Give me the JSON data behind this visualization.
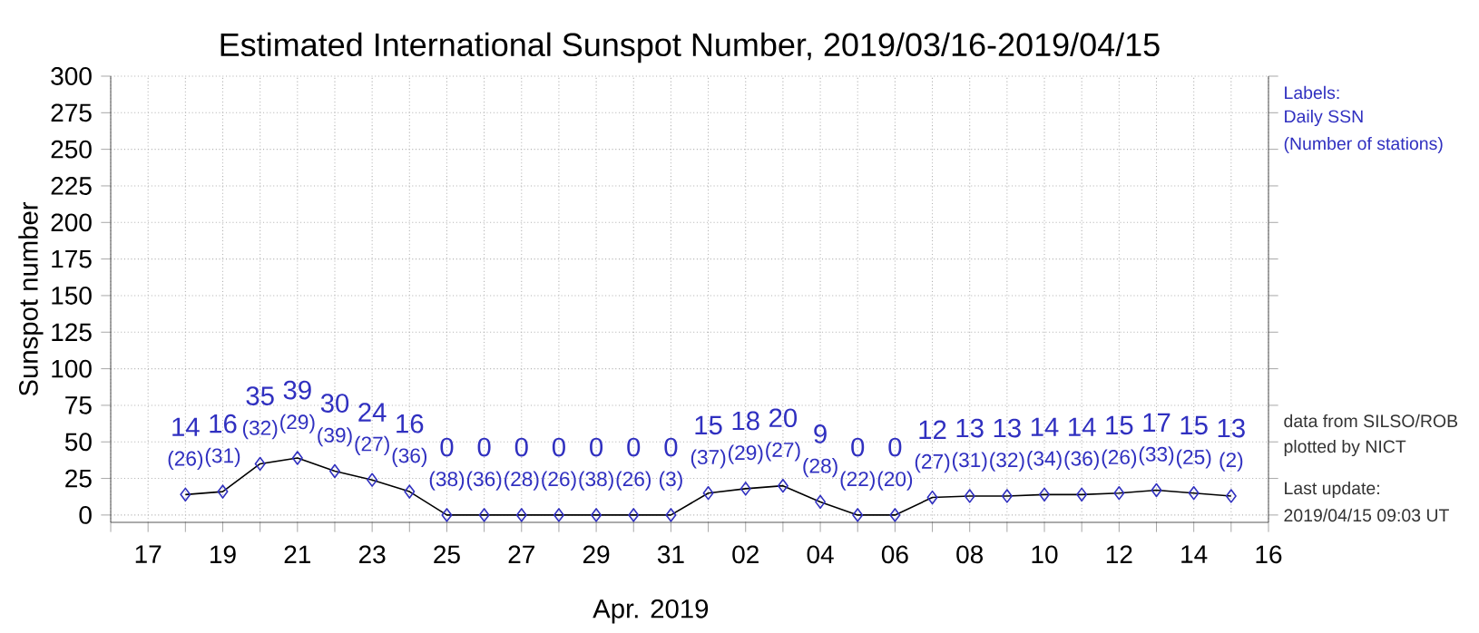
{
  "chart_data": {
    "type": "line",
    "title": "Estimated International Sunspot Number, 2019/03/16-2019/04/15",
    "ylabel": "Sunspot number",
    "xlabel": "Apr. 2019",
    "x": [
      "2019-03-18",
      "2019-03-19",
      "2019-03-20",
      "2019-03-21",
      "2019-03-22",
      "2019-03-23",
      "2019-03-24",
      "2019-03-25",
      "2019-03-26",
      "2019-03-27",
      "2019-03-28",
      "2019-03-29",
      "2019-03-30",
      "2019-03-31",
      "2019-04-01",
      "2019-04-02",
      "2019-04-03",
      "2019-04-04",
      "2019-04-05",
      "2019-04-06",
      "2019-04-07",
      "2019-04-08",
      "2019-04-09",
      "2019-04-10",
      "2019-04-11",
      "2019-04-12",
      "2019-04-13",
      "2019-04-14",
      "2019-04-15"
    ],
    "series": [
      {
        "color": "#3030c0",
        "values": [
          14,
          16,
          35,
          39,
          30,
          24,
          16,
          0,
          0,
          0,
          0,
          0,
          0,
          0,
          15,
          18,
          20,
          9,
          0,
          0,
          12,
          13,
          13,
          14,
          14,
          15,
          17,
          15,
          13
        ]
      }
    ],
    "data_labels": true,
    "marker": "diamond",
    "line_style": "solid",
    "grid": true,
    "xlim": [
      "2019-03-16",
      "2019-04-16"
    ],
    "xticks": [
      {
        "value": "2019-03-16",
        "label": null
      },
      {
        "value": "2019-03-17",
        "label": "17"
      },
      {
        "value": "2019-03-18",
        "label": null
      },
      {
        "value": "2019-03-19",
        "label": "19"
      },
      {
        "value": "2019-03-20",
        "label": null
      },
      {
        "value": "2019-03-21",
        "label": "21"
      },
      {
        "value": "2019-03-22",
        "label": null
      },
      {
        "value": "2019-03-23",
        "label": "23"
      },
      {
        "value": "2019-03-24",
        "label": null
      },
      {
        "value": "2019-03-25",
        "label": "25"
      },
      {
        "value": "2019-03-26",
        "label": null
      },
      {
        "value": "2019-03-27",
        "label": "27"
      },
      {
        "value": "2019-03-28",
        "label": null
      },
      {
        "value": "2019-03-29",
        "label": "29"
      },
      {
        "value": "2019-03-30",
        "label": null
      },
      {
        "value": "2019-03-31",
        "label": "31"
      },
      {
        "value": "2019-04-01",
        "label": null
      },
      {
        "value": "2019-04-02",
        "label": "02"
      },
      {
        "value": "2019-04-03",
        "label": null
      },
      {
        "value": "2019-04-04",
        "label": "04"
      },
      {
        "value": "2019-04-05",
        "label": null
      },
      {
        "value": "2019-04-06",
        "label": "06"
      },
      {
        "value": "2019-04-07",
        "label": null
      },
      {
        "value": "2019-04-08",
        "label": "08"
      },
      {
        "value": "2019-04-09",
        "label": null
      },
      {
        "value": "2019-04-10",
        "label": "10"
      },
      {
        "value": "2019-04-11",
        "label": null
      },
      {
        "value": "2019-04-12",
        "label": "12"
      },
      {
        "value": "2019-04-13",
        "label": null
      },
      {
        "value": "2019-04-14",
        "label": "14"
      },
      {
        "value": "2019-04-15",
        "label": null
      },
      {
        "value": "2019-04-16",
        "label": "16"
      }
    ],
    "ylim": [
      -5,
      300
    ],
    "yticks": [
      0,
      25,
      50,
      75,
      100,
      125,
      150,
      175,
      200,
      225,
      250,
      275,
      300
    ],
    "annotations": [
      {
        "text": "(26)",
        "x": "2019-03-18",
        "y": 14
      },
      {
        "text": "(31)",
        "x": "2019-03-19",
        "y": 16
      },
      {
        "text": "(32)",
        "x": "2019-03-20",
        "y": 35
      },
      {
        "text": "(29)",
        "x": "2019-03-21",
        "y": 39
      },
      {
        "text": "(39)",
        "x": "2019-03-22",
        "y": 30
      },
      {
        "text": "(27)",
        "x": "2019-03-23",
        "y": 24
      },
      {
        "text": "(36)",
        "x": "2019-03-24",
        "y": 16
      },
      {
        "text": "(38)",
        "x": "2019-03-25",
        "y": 0
      },
      {
        "text": "(36)",
        "x": "2019-03-26",
        "y": 0
      },
      {
        "text": "(28)",
        "x": "2019-03-27",
        "y": 0
      },
      {
        "text": "(26)",
        "x": "2019-03-28",
        "y": 0
      },
      {
        "text": "(38)",
        "x": "2019-03-29",
        "y": 0
      },
      {
        "text": "(26)",
        "x": "2019-03-30",
        "y": 0
      },
      {
        "text": "(3)",
        "x": "2019-03-31",
        "y": 0
      },
      {
        "text": "(37)",
        "x": "2019-04-01",
        "y": 15
      },
      {
        "text": "(29)",
        "x": "2019-04-02",
        "y": 18
      },
      {
        "text": "(27)",
        "x": "2019-04-03",
        "y": 20
      },
      {
        "text": "(28)",
        "x": "2019-04-04",
        "y": 9
      },
      {
        "text": "(22)",
        "x": "2019-04-05",
        "y": 0
      },
      {
        "text": "(20)",
        "x": "2019-04-06",
        "y": 0
      },
      {
        "text": "(27)",
        "x": "2019-04-07",
        "y": 12
      },
      {
        "text": "(31)",
        "x": "2019-04-08",
        "y": 13
      },
      {
        "text": "(32)",
        "x": "2019-04-09",
        "y": 13
      },
      {
        "text": "(34)",
        "x": "2019-04-10",
        "y": 14
      },
      {
        "text": "(36)",
        "x": "2019-04-11",
        "y": 14
      },
      {
        "text": "(26)",
        "x": "2019-04-12",
        "y": 15
      },
      {
        "text": "(33)",
        "x": "2019-04-13",
        "y": 17
      },
      {
        "text": "(25)",
        "x": "2019-04-14",
        "y": 15
      },
      {
        "text": "(2)",
        "x": "2019-04-15",
        "y": 13
      },
      "Labels:",
      "Daily SSN",
      "(Number of stations)",
      "data from SILSO/ROB",
      "plotted by NICT",
      "Last update:",
      "2019/04/15 09:03 UT"
    ]
  }
}
